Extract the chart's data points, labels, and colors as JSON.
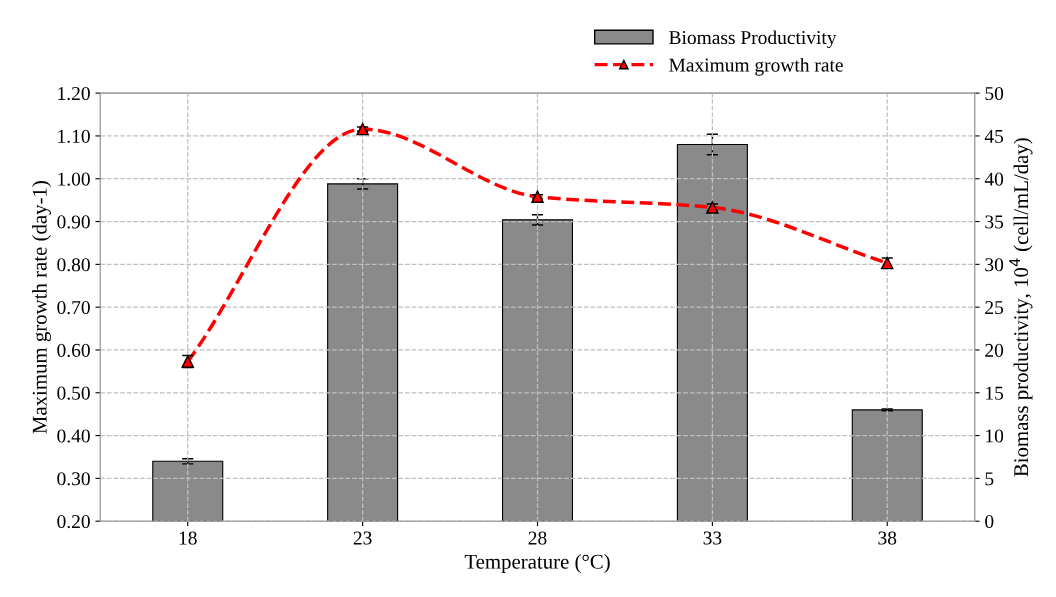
{
  "chart_data": {
    "type": "bar",
    "xlabel": "Temperature (°C)",
    "ylabel": "Maximum growth rate (day-1)",
    "y2label": "Biomass productivity, 10$^{4}$ (cell/mL/day)",
    "categories": [
      "18",
      "23",
      "28",
      "33",
      "38"
    ],
    "series": [
      {
        "name": "Biomass Productivity",
        "axis": "y2",
        "color": "#8a8a8a",
        "values": [
          7.0,
          39.4,
          35.2,
          44.0,
          13.0
        ],
        "errors": [
          0.3,
          0.6,
          0.6,
          1.2,
          0.1
        ]
      },
      {
        "name": "Maximum growth rate",
        "type": "line",
        "color": "#ff0000",
        "line_style": "dashed",
        "marker": "triangle",
        "values": [
          0.573,
          1.116,
          0.958,
          0.933,
          0.803
        ],
        "errors": [
          0.014,
          0.005,
          0.005,
          0.008,
          0.012
        ]
      }
    ],
    "ylim": [
      0.2,
      1.2
    ],
    "yticks": [
      {
        "value": 0.2,
        "label": "0.20"
      },
      {
        "value": 0.3,
        "label": "0.30"
      },
      {
        "value": 0.4,
        "label": "0.40"
      },
      {
        "value": 0.5,
        "label": "0.50"
      },
      {
        "value": 0.6,
        "label": "0.60"
      },
      {
        "value": 0.7,
        "label": "0.70"
      },
      {
        "value": 0.8,
        "label": "0.80"
      },
      {
        "value": 0.9,
        "label": "0.90"
      },
      {
        "value": 1.0,
        "label": "1.00"
      },
      {
        "value": 1.1,
        "label": "1.10"
      },
      {
        "value": 1.2,
        "label": "1.20"
      }
    ],
    "y2lim": [
      0,
      50
    ],
    "y2ticks": [
      0,
      5,
      10,
      15,
      20,
      25,
      30,
      35,
      40,
      45,
      50
    ],
    "grid": true,
    "legend": "top right"
  }
}
